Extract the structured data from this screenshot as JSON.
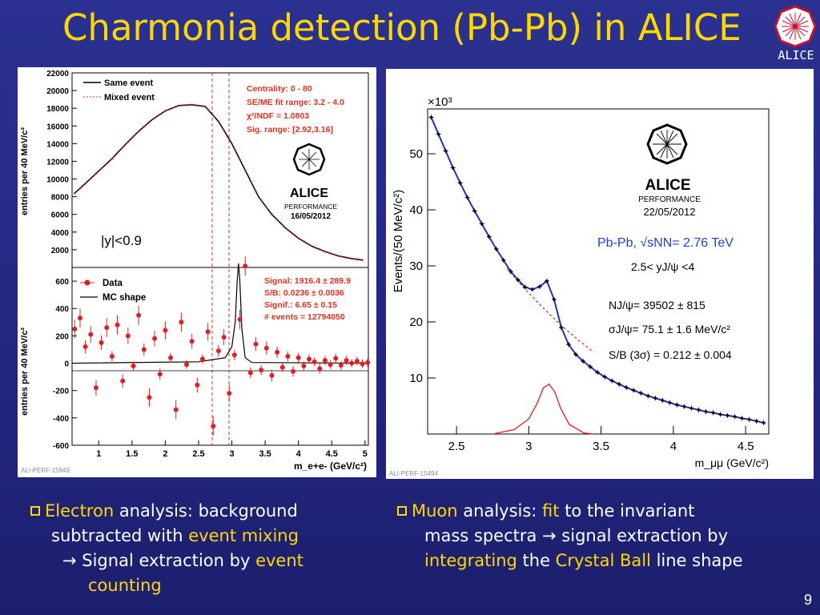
{
  "slide": {
    "title": "Charmonia detection (Pb-Pb) in ALICE",
    "logo_text": "ALICE",
    "page_number": "9",
    "bullets": {
      "left": {
        "w1": "Electron",
        "w2": " analysis: background",
        "w3": "subtracted with ",
        "w4": "event mixing",
        "w5": "→ Signal extraction by ",
        "w6": "event",
        "w7": "counting"
      },
      "right": {
        "w1": "Muon",
        "w2": " analysis: ",
        "w3": "fit",
        "w4": " to the invariant",
        "w5": "mass spectra → signal extraction by",
        "w6": "integrating",
        "w7": " the ",
        "w8": "Crystal Ball",
        "w9": " line shape"
      }
    },
    "colors": {
      "background": "#262a86",
      "highlight": "#ffd700",
      "text": "#ffffff"
    }
  },
  "chart_data": [
    {
      "type": "line",
      "panel": "top-left",
      "ylabel": "entries per 40 MeV/c²",
      "ylim": [
        0,
        22000
      ],
      "xlim": [
        0.6,
        5.05
      ],
      "yticks": [
        "22000",
        "20000",
        "18000",
        "16000",
        "14000",
        "12000",
        "10000",
        "8000",
        "6000",
        "4000",
        "2000"
      ],
      "legend": [
        "Same event",
        "Mixed event"
      ],
      "annotation": [
        "Centrality: 0 - 80",
        "SE/ME fit range: 3.2 - 4.0",
        "χ²/NDF = 1.0803",
        "Sig. range: [2.92,3.16]"
      ],
      "rapidity": "|y|<0.9",
      "performance": "PERFORMANCE",
      "perf_date": "16/05/2012",
      "x": [
        0.64,
        0.8,
        1.0,
        1.2,
        1.4,
        1.6,
        1.8,
        2.0,
        2.2,
        2.4,
        2.6,
        2.8,
        3.0,
        3.2,
        3.4,
        3.6,
        3.8,
        4.0,
        4.2,
        4.4,
        4.6,
        4.8,
        5.0
      ],
      "y": [
        8400,
        9500,
        10900,
        12300,
        13900,
        15400,
        16700,
        17700,
        18300,
        18400,
        18200,
        16500,
        14000,
        11000,
        8000,
        6000,
        4500,
        3300,
        2400,
        1800,
        1300,
        1000,
        800
      ]
    },
    {
      "type": "scatter",
      "panel": "bottom-left",
      "ylabel": "entries per 40 MeV/c²",
      "xlabel": "m_e+e- (GeV/c²)",
      "ylim": [
        -600,
        700
      ],
      "xlim": [
        0.6,
        5.05
      ],
      "xticks": [
        "1",
        "1.5",
        "2",
        "2.5",
        "3",
        "3.5",
        "4",
        "4.5",
        "5"
      ],
      "yticks": [
        "600",
        "400",
        "200",
        "0",
        "-200",
        "-400",
        "-600"
      ],
      "legend": [
        "Data",
        "MC shape"
      ],
      "annotation": [
        "Signal: 1916.4 ± 289.9",
        "S/B: 0.0236 ± 0.0036",
        "Signif.: 6.65 ± 0.15",
        "# events = 12794050"
      ],
      "data_x": [
        0.64,
        0.72,
        0.8,
        0.88,
        0.96,
        1.04,
        1.12,
        1.2,
        1.28,
        1.36,
        1.44,
        1.52,
        1.6,
        1.68,
        1.76,
        1.84,
        1.92,
        2.0,
        2.08,
        2.16,
        2.24,
        2.32,
        2.4,
        2.48,
        2.56,
        2.64,
        2.72,
        2.8,
        2.88,
        2.96,
        3.04,
        3.12,
        3.2,
        3.28,
        3.36,
        3.44,
        3.52,
        3.6,
        3.68,
        3.76,
        3.84,
        3.92,
        4.0,
        4.08,
        4.16,
        4.24,
        4.32,
        4.4,
        4.48,
        4.56,
        4.64,
        4.72,
        4.8,
        4.88,
        4.96,
        5.04
      ],
      "data_y": [
        250,
        330,
        120,
        210,
        -180,
        150,
        260,
        50,
        280,
        -130,
        200,
        -20,
        350,
        100,
        -250,
        180,
        -80,
        240,
        40,
        -340,
        300,
        -10,
        160,
        -160,
        30,
        230,
        -460,
        90,
        190,
        -220,
        60,
        320,
        710,
        -70,
        140,
        -50,
        110,
        -90,
        80,
        -30,
        50,
        -60,
        40,
        -20,
        30,
        10,
        -40,
        20,
        -10,
        35,
        -15,
        20,
        0,
        15,
        -5,
        5
      ],
      "mc_x": [
        0.6,
        2.5,
        2.9,
        3.0,
        3.05,
        3.08,
        3.1,
        3.12,
        3.15,
        3.2,
        3.3,
        5.05
      ],
      "mc_y": [
        0,
        10,
        40,
        120,
        300,
        600,
        730,
        600,
        250,
        40,
        5,
        0
      ],
      "tag": "ALI-PERF-15949"
    },
    {
      "type": "line",
      "panel": "right",
      "ylabel": "Events/(50 MeV/c²)",
      "xlabel": "m_μμ (GeV/c²)",
      "y_multiplier": "×10³",
      "xlim": [
        2.3,
        4.66
      ],
      "ylim": [
        0,
        58
      ],
      "xticks": [
        "2.5",
        "3",
        "3.5",
        "4",
        "4.5"
      ],
      "yticks": [
        "50",
        "40",
        "30",
        "20",
        "10"
      ],
      "performance": "PERFORMANCE",
      "perf_date": "22/05/2012",
      "system": "Pb-Pb, √sNN= 2.76 TeV",
      "rapidity": "2.5< yJ/ψ <4",
      "stats": [
        "NJ/ψ= 39502 ± 815",
        "σJ/ψ= 75.1 ± 1.6 MeV/c²",
        "S/B (3σ) = 0.212 ± 0.004"
      ],
      "series": [
        {
          "name": "data",
          "x": [
            2.325,
            2.375,
            2.425,
            2.475,
            2.525,
            2.575,
            2.625,
            2.675,
            2.725,
            2.775,
            2.825,
            2.875,
            2.925,
            2.975,
            3.025,
            3.075,
            3.125,
            3.175,
            3.225,
            3.275,
            3.325,
            3.375,
            3.425,
            3.475,
            3.525,
            3.575,
            3.625,
            3.675,
            3.725,
            3.775,
            3.825,
            3.875,
            3.925,
            3.975,
            4.025,
            4.075,
            4.125,
            4.175,
            4.225,
            4.275,
            4.325,
            4.375,
            4.425,
            4.475,
            4.525,
            4.575,
            4.625
          ],
          "y": [
            56.5,
            53.5,
            50.5,
            47.5,
            44.8,
            42.2,
            39.8,
            37.5,
            35.2,
            33.0,
            31.0,
            29.0,
            27.5,
            26.2,
            25.8,
            26.3,
            27.3,
            24.0,
            19.0,
            16.0,
            14.2,
            13.0,
            12.0,
            11.0,
            10.2,
            9.5,
            8.9,
            8.3,
            7.8,
            7.3,
            6.8,
            6.4,
            6.0,
            5.6,
            5.2,
            4.9,
            4.6,
            4.3,
            4.0,
            3.8,
            3.5,
            3.3,
            3.1,
            2.8,
            2.6,
            2.3,
            2.0
          ]
        },
        {
          "name": "background",
          "x": [
            2.85,
            2.95,
            3.05,
            3.15,
            3.25,
            3.35,
            3.45
          ],
          "y": [
            29.5,
            26.5,
            23.8,
            21.2,
            18.8,
            16.6,
            14.6
          ]
        },
        {
          "name": "signal",
          "x": [
            2.75,
            2.9,
            3.0,
            3.06,
            3.1,
            3.14,
            3.18,
            3.22,
            3.28,
            3.38,
            3.45
          ],
          "y": [
            0,
            0.8,
            2.7,
            5.6,
            8.2,
            8.9,
            7.5,
            4.6,
            1.7,
            0.2,
            0
          ]
        }
      ],
      "tag": "ALI-PERF-15494"
    }
  ]
}
